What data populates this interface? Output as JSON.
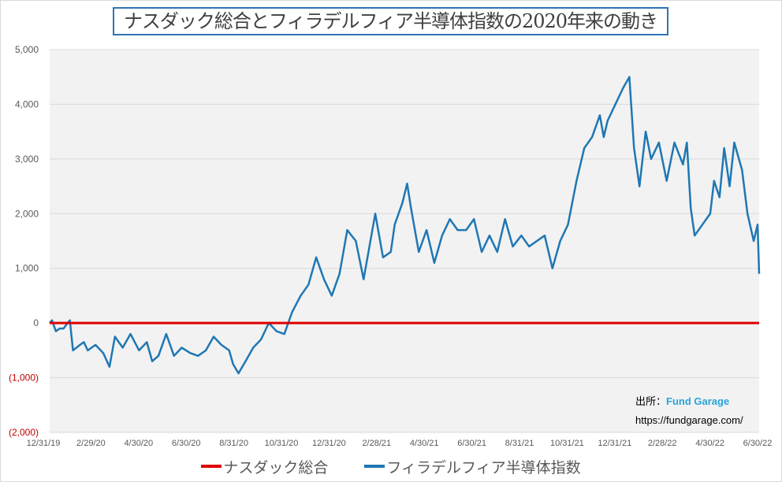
{
  "chart_data": {
    "type": "line",
    "title": "ナスダック総合とフィラデルフィア半導体指数の2020年来の動き",
    "xlabel": "",
    "ylabel": "",
    "ylim": [
      -2000,
      5000
    ],
    "y_ticks": [
      5000,
      4000,
      3000,
      2000,
      1000,
      0,
      -1000,
      -2000
    ],
    "y_tick_labels": [
      "5,000",
      "4,000",
      "3,000",
      "2,000",
      "1,000",
      "0",
      "(1,000)",
      "(2,000)"
    ],
    "x_tick_labels": [
      "12/31/19",
      "2/29/20",
      "4/30/20",
      "6/30/20",
      "8/31/20",
      "10/31/20",
      "12/31/20",
      "2/28/21",
      "4/30/21",
      "6/30/21",
      "8/31/21",
      "10/31/21",
      "12/31/21",
      "2/28/22",
      "4/30/22",
      "6/30/22"
    ],
    "x_range_days": [
      0,
      913
    ],
    "grid": true,
    "legend_placement": "bottom",
    "series": [
      {
        "name": "ナスダック総合",
        "color": "#e00000",
        "days": [
          0,
          913
        ],
        "values": [
          0,
          0
        ]
      },
      {
        "name": "フィラデルフィア半導体指数",
        "color": "#1f77b4",
        "days": [
          0,
          3,
          8,
          13,
          18,
          23,
          26,
          30,
          39,
          44,
          49,
          59,
          69,
          77,
          84,
          94,
          104,
          115,
          125,
          132,
          140,
          150,
          160,
          170,
          181,
          191,
          201,
          211,
          221,
          231,
          236,
          243,
          252,
          262,
          272,
          282,
          292,
          302,
          312,
          323,
          333,
          343,
          353,
          363,
          373,
          383,
          394,
          404,
          414,
          419,
          429,
          439,
          444,
          454,
          460,
          465,
          475,
          485,
          495,
          505,
          515,
          525,
          536,
          546,
          556,
          566,
          576,
          586,
          596,
          607,
          617,
          627,
          637,
          647,
          657,
          667,
          678,
          688,
          698,
          708,
          713,
          718,
          728,
          738,
          746,
          752,
          759,
          767,
          774,
          784,
          794,
          804,
          815,
          820,
          825,
          830,
          840,
          850,
          855,
          862,
          868,
          875,
          881,
          891,
          898,
          906,
          911,
          913
        ],
        "values": [
          0,
          50,
          -150,
          -100,
          -100,
          0,
          50,
          -500,
          -400,
          -350,
          -500,
          -400,
          -550,
          -800,
          -250,
          -450,
          -200,
          -500,
          -350,
          -700,
          -600,
          -200,
          -600,
          -450,
          -550,
          -600,
          -500,
          -250,
          -400,
          -500,
          -750,
          -920,
          -700,
          -450,
          -300,
          0,
          -150,
          -200,
          200,
          500,
          700,
          1200,
          800,
          500,
          900,
          1700,
          1500,
          800,
          1600,
          2000,
          1200,
          1300,
          1800,
          2200,
          2550,
          2100,
          1300,
          1700,
          1100,
          1600,
          1900,
          1700,
          1700,
          1900,
          1300,
          1600,
          1300,
          1900,
          1400,
          1600,
          1400,
          1500,
          1600,
          1000,
          1500,
          1800,
          2600,
          3200,
          3400,
          3800,
          3400,
          3700,
          4000,
          4300,
          4500,
          3200,
          2500,
          3500,
          3000,
          3300,
          2600,
          3300,
          2900,
          3300,
          2100,
          1600,
          1800,
          2000,
          2600,
          2300,
          3200,
          2500,
          3300,
          2800,
          2000,
          1500,
          1800,
          900
        ]
      }
    ]
  },
  "source": {
    "label": "出所：",
    "brand": "Fund Garage",
    "url": "https://fundgarage.com/"
  }
}
